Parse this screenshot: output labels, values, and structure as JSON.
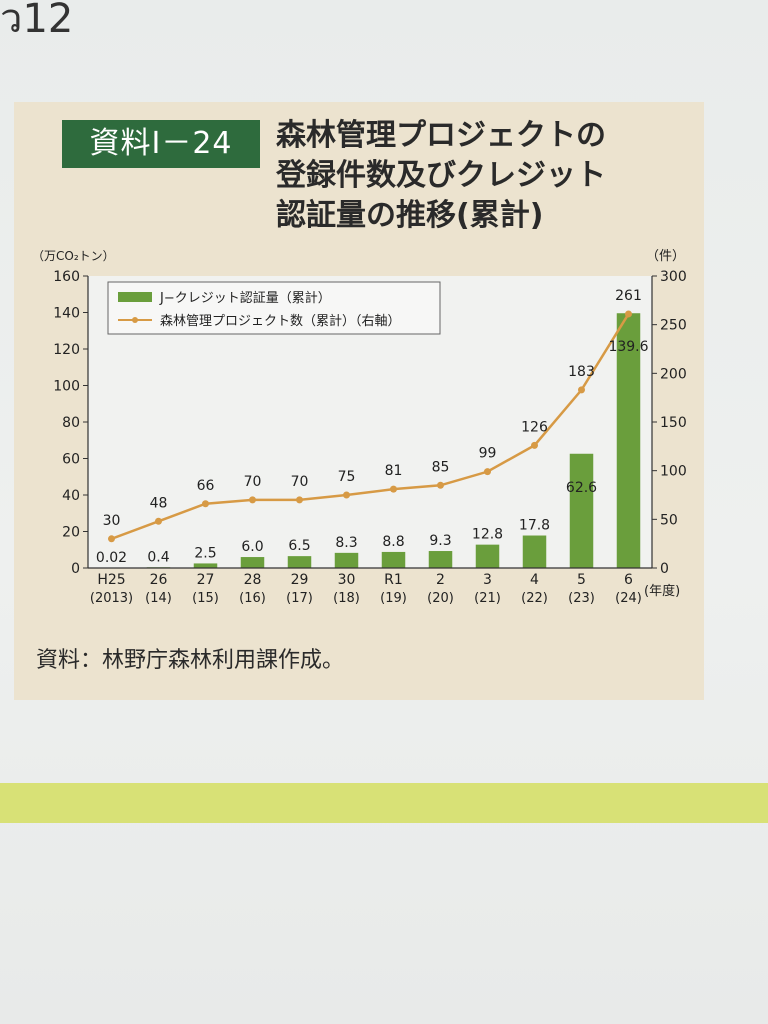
{
  "page": {
    "corner_mark": "ว12",
    "badge": "資料Ⅰ－24",
    "title_lines": [
      "森林管理プロジェクトの",
      "登録件数及びクレジット",
      "認証量の推移(累計)"
    ],
    "source": "資料：林野庁森林利用課作成。",
    "colors": {
      "bar": "#6a9e3c",
      "line": "#d79a45",
      "badge": "#2e6b3d",
      "panel": "#ece3cf",
      "band": "#d8e176"
    }
  },
  "chart_data": {
    "type": "bar",
    "categories": [
      "H25",
      "26",
      "27",
      "28",
      "29",
      "30",
      "R1",
      "2",
      "3",
      "4",
      "5",
      "6"
    ],
    "sub_categories": [
      "(2013)",
      "(14)",
      "(15)",
      "(16)",
      "(17)",
      "(18)",
      "(19)",
      "(20)",
      "(21)",
      "(22)",
      "(23)",
      "(24)"
    ],
    "series": [
      {
        "name": "J−クレジット認証量（累計）",
        "type": "bar",
        "axis": "left",
        "values": [
          0.02,
          0.4,
          2.5,
          6.0,
          6.5,
          8.3,
          8.8,
          9.3,
          12.8,
          17.8,
          62.6,
          139.6
        ],
        "labels": [
          "0.02",
          "0.4",
          "2.5",
          "6.0",
          "6.5",
          "8.3",
          "8.8",
          "9.3",
          "12.8",
          "17.8",
          "62.6",
          "139.6"
        ]
      },
      {
        "name": "森林管理プロジェクト数（累計）（右軸）",
        "type": "line",
        "axis": "right",
        "values": [
          30,
          48,
          66,
          70,
          70,
          75,
          81,
          85,
          99,
          126,
          183,
          261
        ],
        "labels": [
          "30",
          "48",
          "66",
          "70",
          "70",
          "75",
          "81",
          "85",
          "99",
          "126",
          "183",
          "261"
        ]
      }
    ],
    "y_left": {
      "unit": "（万CO₂トン）",
      "min": 0,
      "max": 160,
      "ticks": [
        0,
        20,
        40,
        60,
        80,
        100,
        120,
        140,
        160
      ]
    },
    "y_right": {
      "unit": "（件）",
      "min": 0,
      "max": 300,
      "ticks": [
        0,
        50,
        100,
        150,
        200,
        250,
        300
      ]
    },
    "x_unit": "(年度)",
    "legend_position": "top-left",
    "grid": false
  }
}
